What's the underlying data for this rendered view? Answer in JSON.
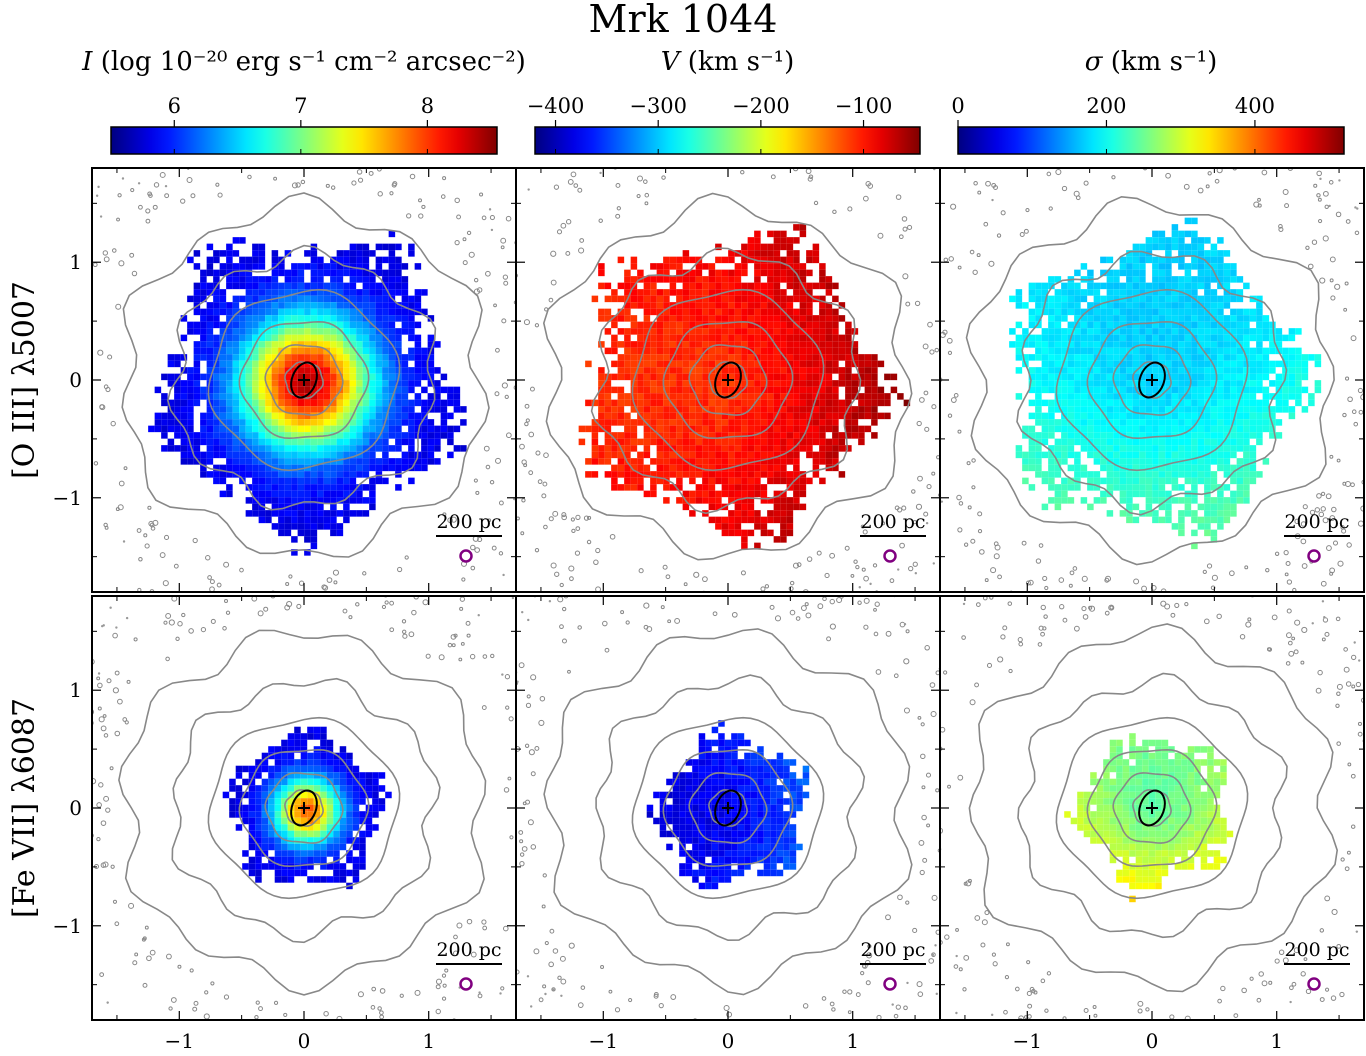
{
  "figure": {
    "title": "Mrk 1044",
    "row_labels": [
      "[O III] λ5007",
      "[Fe VII] λ6087"
    ],
    "scale_bar_label": "200 pc",
    "x_ticks": [
      "−1",
      "0",
      "1"
    ],
    "y_ticks": [
      "1",
      "0",
      "−1"
    ]
  },
  "colorbars": [
    {
      "label_symbol": "I",
      "label_rest": "(log 10⁻²⁰ erg s⁻¹ cm⁻² arcsec⁻²)",
      "vmin": 5.5,
      "vmax": 8.55,
      "ticks": [
        6,
        7,
        8
      ],
      "tick_labels": [
        "6",
        "7",
        "8"
      ],
      "cmap": "jet"
    },
    {
      "label_symbol": "V",
      "label_rest": "(km s⁻¹)",
      "vmin": -420,
      "vmax": -45,
      "ticks": [
        -400,
        -300,
        -200,
        -100
      ],
      "tick_labels": [
        "−400",
        "−300",
        "−200",
        "−100"
      ],
      "cmap": "jet"
    },
    {
      "label_symbol": "σ",
      "label_rest": "(km s⁻¹)",
      "vmin": 0,
      "vmax": 520,
      "ticks": [
        0,
        200,
        400
      ],
      "tick_labels": [
        "0",
        "200",
        "400"
      ],
      "cmap": "jet"
    }
  ],
  "chart_data": {
    "type": "heatmap",
    "description_units": "arcsec offsets",
    "xlim": [
      -1.7,
      1.7
    ],
    "ylim": [
      -1.8,
      1.8
    ],
    "panels": [
      {
        "row": 0,
        "col": 0,
        "quantity": "I",
        "map_radius": 1.35,
        "center_value": 8.4,
        "edge_value": 5.8
      },
      {
        "row": 0,
        "col": 1,
        "quantity": "V",
        "map_radius": 1.35,
        "center_value": -110,
        "edge_value": -80
      },
      {
        "row": 0,
        "col": 2,
        "quantity": "sigma",
        "map_radius": 1.35,
        "center_value": 170,
        "edge_value": 210
      },
      {
        "row": 1,
        "col": 0,
        "quantity": "I",
        "map_radius": 0.7,
        "center_value": 7.9,
        "edge_value": 5.8
      },
      {
        "row": 1,
        "col": 1,
        "quantity": "V",
        "map_radius": 0.7,
        "center_value": -380,
        "edge_value": -360
      },
      {
        "row": 1,
        "col": 2,
        "quantity": "sigma",
        "map_radius": 0.7,
        "center_value": 240,
        "edge_value": 300
      }
    ],
    "contour_levels_radius": [
      0.15,
      0.3,
      0.5,
      0.75,
      1.05,
      1.45
    ]
  }
}
